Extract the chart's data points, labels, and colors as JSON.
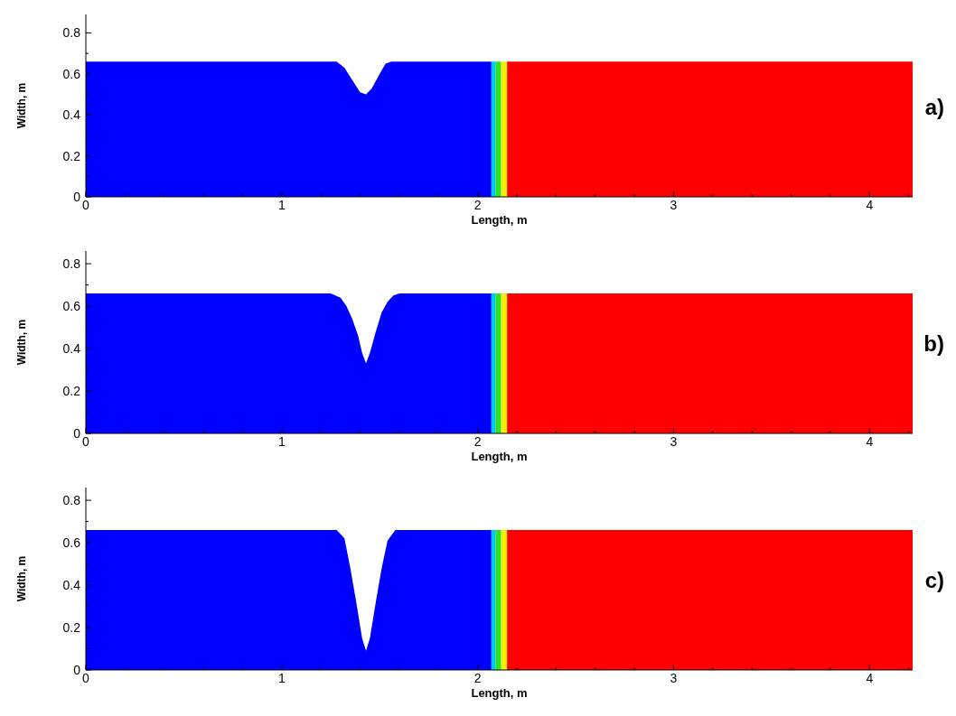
{
  "chart_data": [
    {
      "type": "area",
      "xlabel": "Length, m",
      "ylabel": "Width, m",
      "annotations": [
        "a)"
      ],
      "xlim": [
        0,
        4.22
      ],
      "ylim": [
        0,
        0.89
      ],
      "xticks": [
        0,
        {
          "value": 0.2,
          "label": null
        },
        {
          "value": 0.4,
          "label": null
        },
        {
          "value": 0.6,
          "label": null
        },
        {
          "value": 0.8,
          "label": null
        },
        1,
        {
          "value": 1.2,
          "label": null
        },
        {
          "value": 1.4,
          "label": null
        },
        {
          "value": 1.6,
          "label": null
        },
        {
          "value": 1.8,
          "label": null
        },
        2,
        {
          "value": 2.2,
          "label": null
        },
        {
          "value": 2.4,
          "label": null
        },
        {
          "value": 2.6,
          "label": null
        },
        {
          "value": 2.8,
          "label": null
        },
        3,
        {
          "value": 3.2,
          "label": null
        },
        {
          "value": 3.4,
          "label": null
        },
        {
          "value": 3.6,
          "label": null
        },
        {
          "value": 3.8,
          "label": null
        },
        4,
        {
          "value": 4.2,
          "label": null
        }
      ],
      "yticks": [
        0,
        {
          "value": 0.1,
          "label": null
        },
        0.2,
        {
          "value": 0.3,
          "label": null
        },
        0.4,
        {
          "value": 0.5,
          "label": null
        },
        0.6,
        {
          "value": 0.7,
          "label": null
        },
        0.8
      ],
      "series": [
        {
          "color": "#0000ff",
          "x": [
            0,
            1.28,
            1.32,
            1.36,
            1.4,
            1.43,
            1.46,
            1.5,
            1.53,
            1.56,
            2.07
          ],
          "values": [
            0.66,
            0.66,
            0.63,
            0.57,
            0.51,
            0.5,
            0.53,
            0.6,
            0.65,
            0.66,
            0.66
          ]
        },
        {
          "color": "#00c8ff",
          "x": [
            2.07,
            2.09
          ],
          "values": [
            0.66,
            0.66
          ]
        },
        {
          "color": "#30e030",
          "x": [
            2.09,
            2.12
          ],
          "values": [
            0.66,
            0.66
          ]
        },
        {
          "color": "#f0f000",
          "x": [
            2.12,
            2.15
          ],
          "values": [
            0.66,
            0.66
          ]
        },
        {
          "color": "#ff0000",
          "x": [
            2.15,
            4.22
          ],
          "values": [
            0.66,
            0.66
          ]
        }
      ]
    },
    {
      "type": "area",
      "xlabel": "Length, m",
      "ylabel": "Width, m",
      "annotations": [
        "b)"
      ],
      "xlim": [
        0,
        4.22
      ],
      "ylim": [
        0,
        0.86
      ],
      "xticks": [
        0,
        {
          "value": 0.2,
          "label": null
        },
        {
          "value": 0.4,
          "label": null
        },
        {
          "value": 0.6,
          "label": null
        },
        {
          "value": 0.8,
          "label": null
        },
        1,
        {
          "value": 1.2,
          "label": null
        },
        {
          "value": 1.4,
          "label": null
        },
        {
          "value": 1.6,
          "label": null
        },
        {
          "value": 1.8,
          "label": null
        },
        2,
        {
          "value": 2.2,
          "label": null
        },
        {
          "value": 2.4,
          "label": null
        },
        {
          "value": 2.6,
          "label": null
        },
        {
          "value": 2.8,
          "label": null
        },
        3,
        {
          "value": 3.2,
          "label": null
        },
        {
          "value": 3.4,
          "label": null
        },
        {
          "value": 3.6,
          "label": null
        },
        {
          "value": 3.8,
          "label": null
        },
        4,
        {
          "value": 4.2,
          "label": null
        }
      ],
      "yticks": [
        0,
        {
          "value": 0.1,
          "label": null
        },
        0.2,
        {
          "value": 0.3,
          "label": null
        },
        0.4,
        {
          "value": 0.5,
          "label": null
        },
        0.6,
        {
          "value": 0.7,
          "label": null
        },
        0.8
      ],
      "series": [
        {
          "color": "#0000ff",
          "x": [
            0,
            1.25,
            1.3,
            1.33,
            1.36,
            1.39,
            1.41,
            1.43,
            1.45,
            1.48,
            1.51,
            1.54,
            1.57,
            1.6,
            2.07
          ],
          "values": [
            0.66,
            0.66,
            0.64,
            0.6,
            0.54,
            0.46,
            0.38,
            0.33,
            0.38,
            0.48,
            0.57,
            0.62,
            0.65,
            0.66,
            0.66
          ]
        },
        {
          "color": "#00c8ff",
          "x": [
            2.07,
            2.09
          ],
          "values": [
            0.66,
            0.66
          ]
        },
        {
          "color": "#30e030",
          "x": [
            2.09,
            2.12
          ],
          "values": [
            0.66,
            0.66
          ]
        },
        {
          "color": "#f0f000",
          "x": [
            2.12,
            2.15
          ],
          "values": [
            0.66,
            0.66
          ]
        },
        {
          "color": "#ff0000",
          "x": [
            2.15,
            4.22
          ],
          "values": [
            0.66,
            0.66
          ]
        }
      ]
    },
    {
      "type": "area",
      "xlabel": "Length, m",
      "ylabel": "Width, m",
      "annotations": [
        "c)"
      ],
      "xlim": [
        0,
        4.22
      ],
      "ylim": [
        0,
        0.86
      ],
      "xticks": [
        0,
        {
          "value": 0.2,
          "label": null
        },
        {
          "value": 0.4,
          "label": null
        },
        {
          "value": 0.6,
          "label": null
        },
        {
          "value": 0.8,
          "label": null
        },
        1,
        {
          "value": 1.2,
          "label": null
        },
        {
          "value": 1.4,
          "label": null
        },
        {
          "value": 1.6,
          "label": null
        },
        {
          "value": 1.8,
          "label": null
        },
        2,
        {
          "value": 2.2,
          "label": null
        },
        {
          "value": 2.4,
          "label": null
        },
        {
          "value": 2.6,
          "label": null
        },
        {
          "value": 2.8,
          "label": null
        },
        3,
        {
          "value": 3.2,
          "label": null
        },
        {
          "value": 3.4,
          "label": null
        },
        {
          "value": 3.6,
          "label": null
        },
        {
          "value": 3.8,
          "label": null
        },
        4,
        {
          "value": 4.2,
          "label": null
        }
      ],
      "yticks": [
        0,
        {
          "value": 0.1,
          "label": null
        },
        0.2,
        {
          "value": 0.3,
          "label": null
        },
        0.4,
        {
          "value": 0.5,
          "label": null
        },
        0.6,
        {
          "value": 0.7,
          "label": null
        },
        0.8
      ],
      "series": [
        {
          "color": "#0000ff",
          "x": [
            0,
            1.28,
            1.32,
            1.35,
            1.38,
            1.41,
            1.43,
            1.45,
            1.48,
            1.51,
            1.54,
            1.58,
            2.07
          ],
          "values": [
            0.66,
            0.66,
            0.62,
            0.48,
            0.32,
            0.15,
            0.09,
            0.15,
            0.32,
            0.48,
            0.61,
            0.66,
            0.66
          ]
        },
        {
          "color": "#00c8ff",
          "x": [
            2.07,
            2.09
          ],
          "values": [
            0.66,
            0.66
          ]
        },
        {
          "color": "#30e030",
          "x": [
            2.09,
            2.12
          ],
          "values": [
            0.66,
            0.66
          ]
        },
        {
          "color": "#f0f000",
          "x": [
            2.12,
            2.15
          ],
          "values": [
            0.66,
            0.66
          ]
        },
        {
          "color": "#ff0000",
          "x": [
            2.15,
            4.22
          ],
          "values": [
            0.66,
            0.66
          ]
        }
      ]
    }
  ]
}
